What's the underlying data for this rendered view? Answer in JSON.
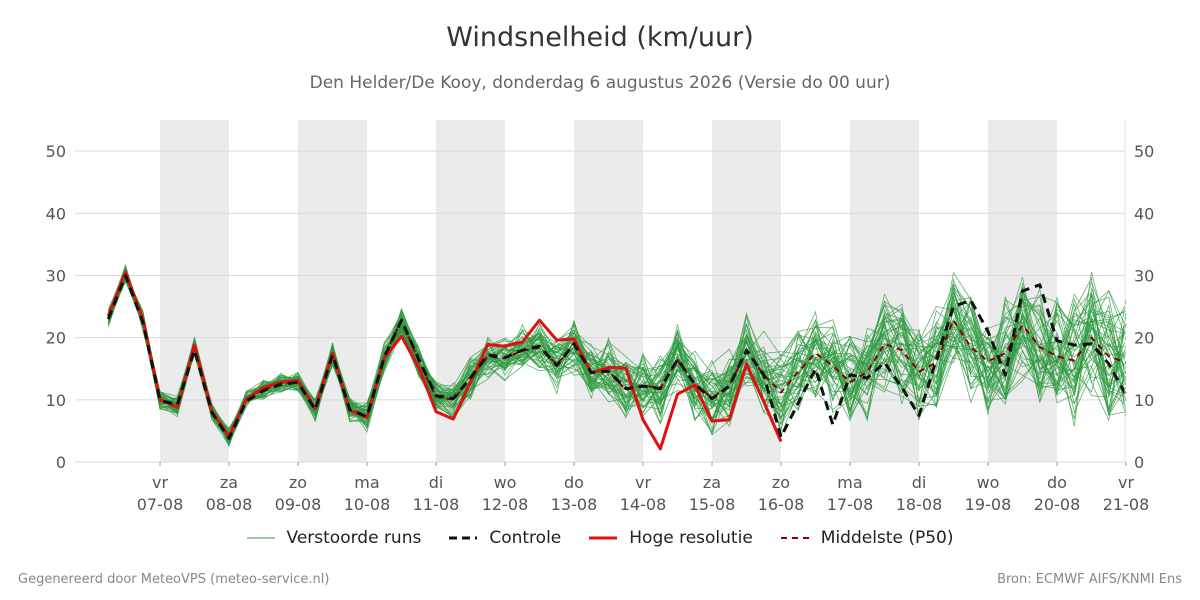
{
  "chart_data": {
    "type": "line",
    "title": "Windsnelheid (km/uur)",
    "subtitle": "Den Helder/De Kooy, donderdag  6 augustus 2026 (Versie do 00 uur)",
    "ylim": [
      0,
      55
    ],
    "yticks": [
      0,
      10,
      20,
      30,
      40,
      50
    ],
    "x_range_days": [
      6.25,
      21.0
    ],
    "x_ticks": [
      {
        "day": "vr",
        "date": "07-08"
      },
      {
        "day": "za",
        "date": "08-08"
      },
      {
        "day": "zo",
        "date": "09-08"
      },
      {
        "day": "ma",
        "date": "10-08"
      },
      {
        "day": "di",
        "date": "11-08"
      },
      {
        "day": "wo",
        "date": "12-08"
      },
      {
        "day": "do",
        "date": "13-08"
      },
      {
        "day": "vr",
        "date": "14-08"
      },
      {
        "day": "za",
        "date": "15-08"
      },
      {
        "day": "zo",
        "date": "16-08"
      },
      {
        "day": "ma",
        "date": "17-08"
      },
      {
        "day": "di",
        "date": "18-08"
      },
      {
        "day": "wo",
        "date": "19-08"
      },
      {
        "day": "do",
        "date": "20-08"
      },
      {
        "day": "vr",
        "date": "21-08"
      }
    ],
    "shaded_days": [
      "07-08",
      "09-08",
      "11-08",
      "13-08",
      "15-08",
      "17-08",
      "19-08"
    ],
    "grid": true,
    "series": [
      {
        "name": "Hoge resolutie",
        "color": "#e01010",
        "style": "solid",
        "x": [
          6.25,
          6.5,
          6.75,
          7.0,
          7.25,
          7.5,
          7.75,
          8.0,
          8.25,
          8.5,
          8.75,
          9.0,
          9.25,
          9.5,
          9.75,
          10.0,
          10.25,
          10.5,
          10.75,
          11.0,
          11.25,
          11.5,
          11.75,
          12.0,
          12.25,
          12.5,
          12.75,
          13.0,
          13.25,
          13.5,
          13.75,
          14.0,
          14.25,
          14.5,
          14.75,
          15.0,
          15.25,
          15.5,
          15.75,
          16.0
        ],
        "y": [
          23.5,
          30.5,
          23,
          10,
          8.8,
          18.8,
          8.2,
          4.1,
          10.1,
          12,
          12.8,
          13.1,
          8.6,
          17.5,
          8.3,
          7.2,
          16.8,
          20.2,
          15.2,
          8.1,
          6.9,
          12.8,
          18.9,
          18.6,
          19.3,
          22.8,
          19.6,
          19.8,
          14.3,
          15.2,
          15.1,
          6.8,
          2.1,
          10.9,
          12.4,
          6.6,
          6.8,
          15.8,
          9.7,
          3.3
        ]
      },
      {
        "name": "Controle",
        "color": "#111111",
        "style": "dashed",
        "x": [
          6.25,
          6.5,
          6.75,
          7.0,
          7.25,
          7.5,
          7.75,
          8.0,
          8.25,
          8.5,
          8.75,
          9.0,
          9.25,
          9.5,
          9.75,
          10.0,
          10.25,
          10.5,
          10.75,
          11.0,
          11.25,
          11.5,
          11.75,
          12.0,
          12.25,
          12.5,
          12.75,
          13.0,
          13.25,
          13.5,
          13.75,
          14.0,
          14.25,
          14.5,
          14.75,
          15.0,
          15.25,
          15.5,
          15.75,
          16.0,
          16.5,
          16.75,
          17.0,
          17.25,
          17.5,
          17.75,
          18.0,
          18.25,
          18.5,
          18.75,
          19.0,
          19.25,
          19.5,
          19.75,
          20.0,
          20.25,
          20.5,
          20.75,
          21.0
        ],
        "y": [
          23,
          30,
          22.5,
          9.9,
          9.2,
          18,
          8,
          3.8,
          9.8,
          11.5,
          12.5,
          12.8,
          8.4,
          17.2,
          8.4,
          7.3,
          16.9,
          22.8,
          16.5,
          10.7,
          10.2,
          13.5,
          17.2,
          16.8,
          18,
          18.6,
          15.5,
          19,
          14.4,
          14.6,
          11.8,
          12.2,
          11.8,
          16.5,
          12.5,
          10.2,
          12.2,
          18,
          14,
          4,
          15,
          6,
          14,
          13.5,
          16,
          12,
          7.5,
          16.5,
          25,
          26,
          21,
          14,
          27.5,
          28.5,
          19.5,
          18.8,
          19,
          15.8,
          10.8
        ]
      },
      {
        "name": "Middelste (P50)",
        "color": "#8b0000",
        "style": "dashed",
        "x": [
          6.25,
          6.5,
          6.75,
          7.0,
          7.25,
          7.5,
          7.75,
          8.0,
          8.25,
          8.5,
          8.75,
          9.0,
          9.25,
          9.5,
          9.75,
          10.0,
          10.25,
          10.5,
          10.75,
          11.0,
          11.25,
          11.5,
          11.75,
          12.0,
          12.25,
          12.5,
          12.75,
          13.0,
          13.25,
          13.5,
          13.75,
          14.0,
          14.25,
          14.5,
          14.75,
          15.0,
          15.25,
          15.5,
          15.75,
          16.0,
          16.25,
          16.5,
          16.75,
          17.0,
          17.25,
          17.5,
          17.75,
          18.0,
          18.25,
          18.5,
          18.75,
          19.0,
          19.25,
          19.5,
          19.75,
          20.0,
          20.25,
          20.5,
          20.75,
          21.0
        ],
        "y": [
          23.2,
          30.2,
          22.8,
          10,
          9,
          18.5,
          8.1,
          4,
          10,
          11.7,
          12.6,
          12.9,
          8.5,
          17.3,
          8.5,
          7.4,
          17,
          22.8,
          16.2,
          10.5,
          10,
          13.6,
          17,
          16.7,
          17.9,
          18.4,
          15.7,
          18.8,
          14.5,
          14.7,
          11.6,
          12.3,
          11.9,
          16.4,
          12.6,
          10.3,
          12.3,
          17.8,
          14,
          11.2,
          14.5,
          17.5,
          15.5,
          12.8,
          14.5,
          19,
          18,
          14.5,
          16,
          22.8,
          18.5,
          16.2,
          17.5,
          22,
          18.5,
          17,
          16.3,
          20,
          17,
          16
        ]
      },
      {
        "name": "Verstoorde runs",
        "color": "#2e9a40",
        "style": "thin",
        "ensemble_members": 50
      }
    ]
  },
  "legend": {
    "items": [
      {
        "label": "Verstoorde runs",
        "color": "#2e9a40"
      },
      {
        "label": "Controle",
        "color": "#111111"
      },
      {
        "label": "Hoge resolutie",
        "color": "#e01010"
      },
      {
        "label": "Middelste (P50)",
        "color": "#8b0000"
      }
    ]
  },
  "footer": {
    "left": "Gegenereerd door MeteoVPS (meteo-service.nl)",
    "right": "Bron: ECMWF AIFS/KNMI Ens"
  }
}
